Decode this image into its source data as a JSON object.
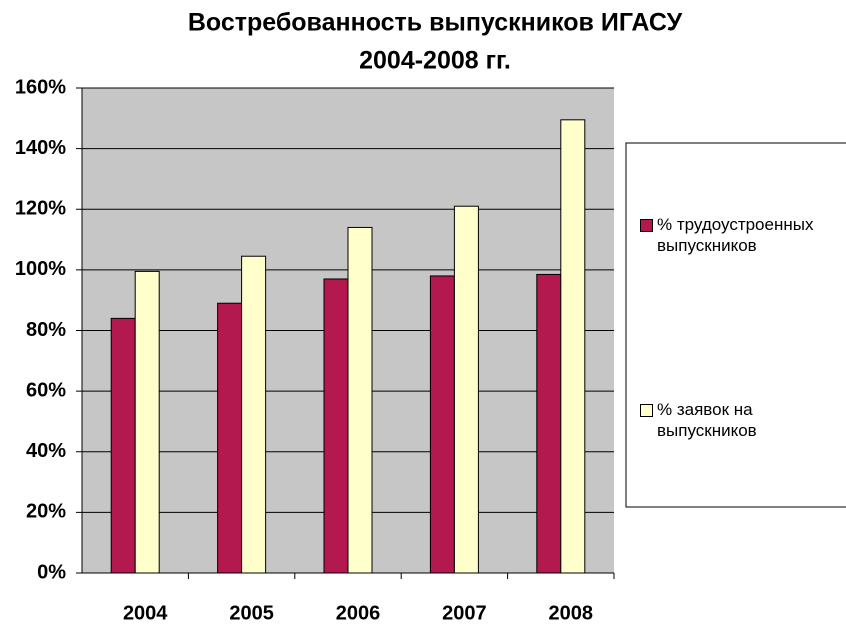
{
  "chart_data": {
    "type": "bar",
    "title": "Востребованность выпускников ИГАСУ",
    "subtitle": "2004-2008 гг.",
    "categories": [
      "2004",
      "2005",
      "2006",
      "2007",
      "2008"
    ],
    "series": [
      {
        "name": "% трудоустроенных выпускников",
        "color": "#b3184f",
        "values": [
          84,
          89,
          97,
          98,
          98.5
        ]
      },
      {
        "name": "% заявок на выпускников",
        "color": "#ffffcc",
        "values": [
          99.5,
          104.5,
          114,
          121,
          149.5
        ]
      }
    ],
    "ylim": [
      0,
      160
    ],
    "yticks": [
      {
        "value": 0,
        "label": "0%"
      },
      {
        "value": 20,
        "label": "20%"
      },
      {
        "value": 40,
        "label": "40%"
      },
      {
        "value": 60,
        "label": "60%"
      },
      {
        "value": 80,
        "label": "80%"
      },
      {
        "value": 100,
        "label": "100%"
      },
      {
        "value": 120,
        "label": "120%"
      },
      {
        "value": 140,
        "label": "140%"
      },
      {
        "value": 160,
        "label": "160%"
      }
    ],
    "grid": true,
    "legend": "right"
  }
}
